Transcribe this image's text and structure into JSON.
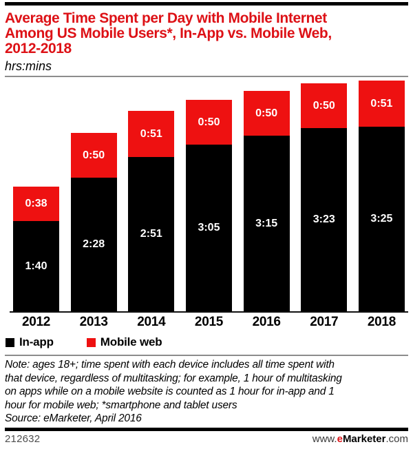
{
  "header": {
    "title_lines": [
      "Average Time Spent per Day with Mobile Internet",
      "Among US Mobile Users*, In-App vs. Mobile Web,",
      "2012-2018"
    ],
    "subtitle": "hrs:mins"
  },
  "chart_data": {
    "type": "bar",
    "variant": "stacked",
    "title": "Average Time Spent per Day with Mobile Internet Among US Mobile Users*, In-App vs. Mobile Web, 2012-2018",
    "unit": "hrs:mins",
    "categories": [
      "2012",
      "2013",
      "2014",
      "2015",
      "2016",
      "2017",
      "2018"
    ],
    "series": [
      {
        "name": "In-app",
        "color": "#000000",
        "labels": [
          "1:40",
          "2:28",
          "2:51",
          "3:05",
          "3:15",
          "3:23",
          "3:25"
        ],
        "values_minutes": [
          100,
          148,
          171,
          185,
          195,
          203,
          205
        ]
      },
      {
        "name": "Mobile web",
        "color": "#ee1111",
        "labels": [
          "0:38",
          "0:50",
          "0:51",
          "0:50",
          "0:50",
          "0:50",
          "0:51"
        ],
        "values_minutes": [
          38,
          50,
          51,
          50,
          50,
          50,
          51
        ]
      }
    ],
    "legend_position": "bottom-left",
    "grid": false,
    "y_axis_shown": false
  },
  "note": {
    "lines": [
      "Note: ages 18+; time spent with each device includes all time spent with",
      "that device, regardless of multitasking; for example, 1 hour of multitasking",
      "on apps while on a mobile website is counted as 1 hour for in-app and 1",
      "hour for mobile web; *smartphone and tablet users"
    ],
    "source": "Source: eMarketer, April 2016"
  },
  "footer": {
    "chart_id": "212632",
    "site_prefix": "www.",
    "site_brand_e": "e",
    "site_brand_rest": "Marketer",
    "site_suffix": ".com"
  },
  "colors": {
    "title_red": "#dd1116",
    "bar_red": "#ee1111",
    "bar_black": "#000000",
    "brand_e_red": "#dd1116",
    "rule_gray": "#8c8c8c"
  }
}
